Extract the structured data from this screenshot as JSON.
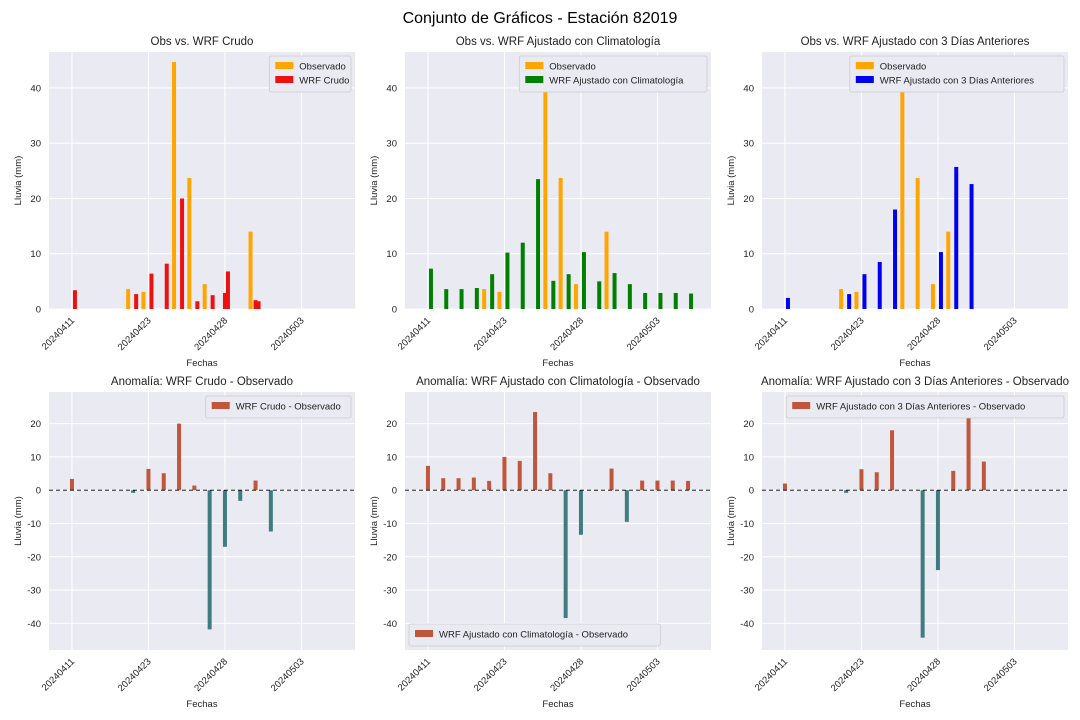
{
  "figure": {
    "suptitle": "Conjunto de Gráficos - Estación 82019"
  },
  "chart_data": [
    {
      "type": "bar",
      "title": "Obs vs. WRF Crudo",
      "xlabel": "Fechas",
      "ylabel": "Lluvia (mm)",
      "ylim": [
        0,
        46.5
      ],
      "yticks": [
        0,
        10,
        20,
        30,
        40
      ],
      "grid": true,
      "legend": "top-right",
      "xtick_labels": [
        "20240411",
        "20240423",
        "20240428",
        "20240503"
      ],
      "series": [
        {
          "name": "Observado",
          "color": "#FFA500",
          "x": [
            5,
            6,
            8,
            9,
            10,
            13
          ],
          "values": [
            3.6,
            3.1,
            44.7,
            23.7,
            4.5,
            14.0
          ]
        },
        {
          "name": "WRF Crudo",
          "color": "#EE1111",
          "x": [
            1,
            5,
            6,
            7,
            8,
            9,
            10,
            11,
            13
          ],
          "values": [
            3.4,
            2.7,
            6.4,
            8.2,
            20.0,
            1.4,
            2.5,
            6.8,
            1.4
          ]
        }
      ],
      "extra_series_ex": [
        {
          "x": [
            11,
            13
          ],
          "values": [
            2.9,
            1.6
          ]
        }
      ]
    },
    {
      "type": "bar",
      "title": "Obs vs. WRF Ajustado con Climatología",
      "xlabel": "Fechas",
      "ylabel": "Lluvia (mm)",
      "ylim": [
        0,
        46.5
      ],
      "yticks": [
        0,
        10,
        20,
        30,
        40
      ],
      "grid": true,
      "legend": "top-right",
      "xtick_labels": [
        "20240411",
        "20240423",
        "20240428",
        "20240503"
      ],
      "series": [
        {
          "name": "Observado",
          "color": "#FFA500",
          "x": [
            5,
            6,
            9,
            10,
            11,
            13
          ],
          "values": [
            3.6,
            3.1,
            44.7,
            23.7,
            4.5,
            14.0
          ]
        },
        {
          "name": "WRF Ajustado con Climatología",
          "color": "#008000",
          "x": [
            1,
            2,
            3,
            4,
            5,
            6,
            7,
            8,
            9,
            10,
            11,
            12,
            13,
            14,
            15,
            16,
            17,
            18
          ],
          "values": [
            7.3,
            3.6,
            3.6,
            3.8,
            6.3,
            10.2,
            12.0,
            23.5,
            5.1,
            6.3,
            10.3,
            5.0,
            6.5,
            4.5,
            2.9,
            2.9,
            2.9,
            2.8
          ]
        }
      ]
    },
    {
      "type": "bar",
      "title": "Obs vs. WRF Ajustado con 3 Días Anteriores",
      "xlabel": "Fechas",
      "ylabel": "Lluvia (mm)",
      "ylim": [
        0,
        46.5
      ],
      "yticks": [
        0,
        10,
        20,
        30,
        40
      ],
      "grid": true,
      "legend": "top-right",
      "xtick_labels": [
        "20240411",
        "20240423",
        "20240428",
        "20240503"
      ],
      "series": [
        {
          "name": "Observado",
          "color": "#FFA500",
          "x": [
            5,
            6,
            9,
            10,
            11,
            12
          ],
          "values": [
            3.6,
            3.1,
            44.7,
            23.7,
            4.5,
            14.0
          ]
        },
        {
          "name": "WRF Ajustado con 3 Días Anteriores",
          "color": "#0000EE",
          "x": [
            1,
            5,
            6,
            7,
            8,
            11,
            12,
            13
          ],
          "values": [
            2.0,
            2.7,
            6.3,
            8.5,
            18.0,
            10.3,
            25.7,
            22.6
          ]
        }
      ]
    },
    {
      "type": "bar",
      "title": "Anomalía: WRF Crudo - Observado",
      "xlabel": "Fechas",
      "ylabel": "Lluvia (mm)",
      "ylim": [
        -48,
        29.5
      ],
      "yticks": [
        -40,
        -30,
        -20,
        -10,
        0,
        10,
        20
      ],
      "grid": true,
      "legend": "top-right",
      "xtick_labels": [
        "20240411",
        "20240423",
        "20240428",
        "20240503"
      ],
      "series": [
        {
          "name": "WRF Crudo - Observado",
          "color": "#C0563B",
          "neg_color": "#3E7C80",
          "x": [
            1,
            5,
            6,
            7,
            8,
            9,
            10,
            11,
            12,
            13,
            14
          ],
          "values": [
            3.4,
            -0.8,
            6.4,
            5.1,
            20.0,
            1.4,
            -41.8,
            -17.0,
            -3.2,
            2.9,
            -12.4
          ]
        }
      ]
    },
    {
      "type": "bar",
      "title": "Anomalía: WRF Ajustado con Climatología - Observado",
      "xlabel": "Fechas",
      "ylabel": "Lluvia (mm)",
      "ylim": [
        -48,
        29.5
      ],
      "yticks": [
        -40,
        -30,
        -20,
        -10,
        0,
        10,
        20
      ],
      "grid": true,
      "legend": "bottom-left",
      "xtick_labels": [
        "20240411",
        "20240423",
        "20240428",
        "20240503"
      ],
      "series": [
        {
          "name": "WRF Ajustado con Climatología - Observado",
          "color": "#C0563B",
          "neg_color": "#3E7C80",
          "x": [
            1,
            2,
            3,
            4,
            5,
            6,
            7,
            8,
            9,
            10,
            11,
            12,
            13,
            14,
            15,
            16,
            17,
            18
          ],
          "values": [
            7.3,
            3.6,
            3.6,
            3.8,
            2.8,
            10.0,
            8.8,
            23.5,
            5.1,
            -38.4,
            -13.4,
            0.0,
            6.5,
            -9.5,
            2.9,
            2.9,
            2.9,
            2.8
          ]
        }
      ]
    },
    {
      "type": "bar",
      "title": "Anomalía: WRF Ajustado con 3 Días Anteriores - Observado",
      "xlabel": "Fechas",
      "ylabel": "Lluvia (mm)",
      "ylim": [
        -48,
        29.5
      ],
      "yticks": [
        -40,
        -30,
        -20,
        -10,
        0,
        10,
        20
      ],
      "grid": true,
      "legend": "top-right",
      "xtick_labels": [
        "20240411",
        "20240423",
        "20240428",
        "20240503"
      ],
      "series": [
        {
          "name": "WRF Ajustado con 3 Días Anteriores - Observado",
          "color": "#C0563B",
          "neg_color": "#3E7C80",
          "x": [
            1,
            5,
            6,
            7,
            8,
            10,
            11,
            12,
            13,
            14
          ],
          "values": [
            2.0,
            -0.8,
            6.3,
            5.4,
            18.0,
            -44.3,
            -24.0,
            5.8,
            23.7,
            8.6
          ]
        }
      ]
    }
  ]
}
